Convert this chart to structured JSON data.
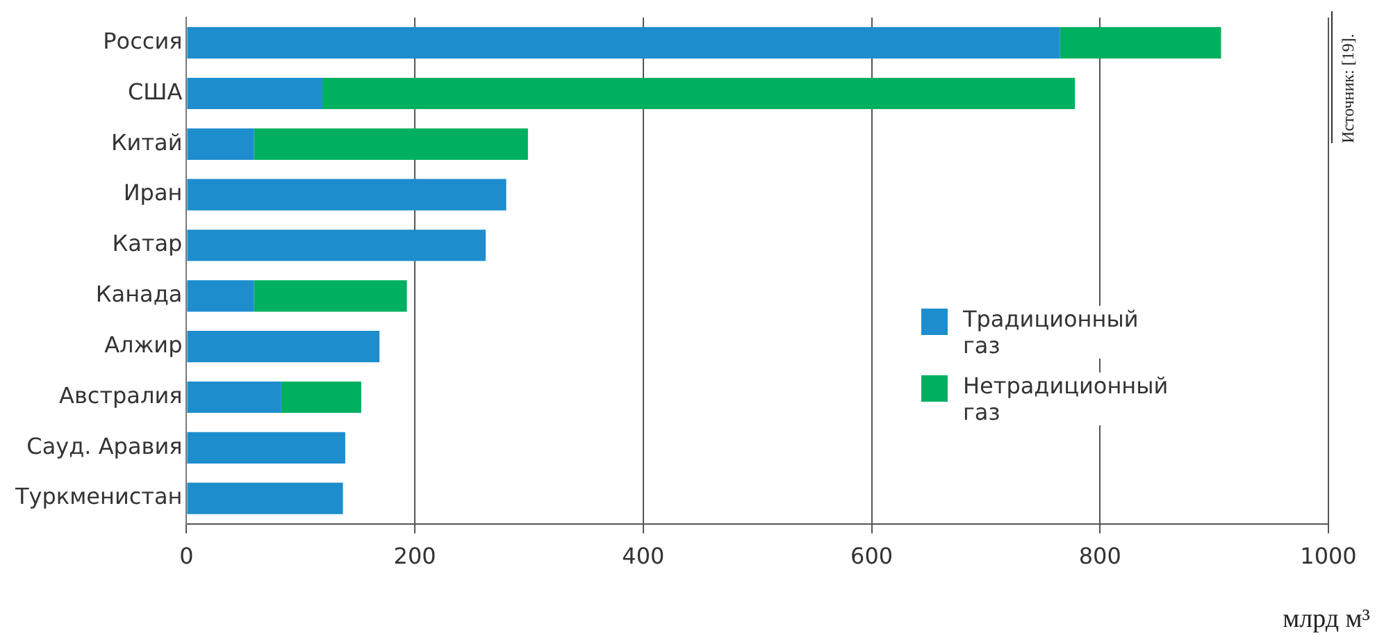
{
  "chart_data": {
    "type": "bar",
    "orientation": "horizontal",
    "stacked": true,
    "categories": [
      "Россия",
      "США",
      "Китай",
      "Иран",
      "Катар",
      "Канада",
      "Алжир",
      "Австралия",
      "Сауд. Аравия",
      "Туркменистан"
    ],
    "series": [
      {
        "name": "Традиционный газ",
        "color": "#1d8dcd",
        "values": [
          765,
          119,
          59,
          280,
          262,
          59,
          169,
          83,
          139,
          137
        ]
      },
      {
        "name": "Нетрадиционный газ",
        "color": "#00b060",
        "values": [
          141,
          659,
          240,
          null,
          null,
          134,
          null,
          70,
          null,
          null
        ]
      }
    ],
    "xlim": [
      0,
      1000
    ],
    "xticks": [
      0,
      200,
      400,
      600,
      800,
      1000
    ],
    "xlabel": "млрд м³",
    "grid": "x",
    "legend": "right",
    "annotations": [
      "Источник: [19]."
    ]
  }
}
